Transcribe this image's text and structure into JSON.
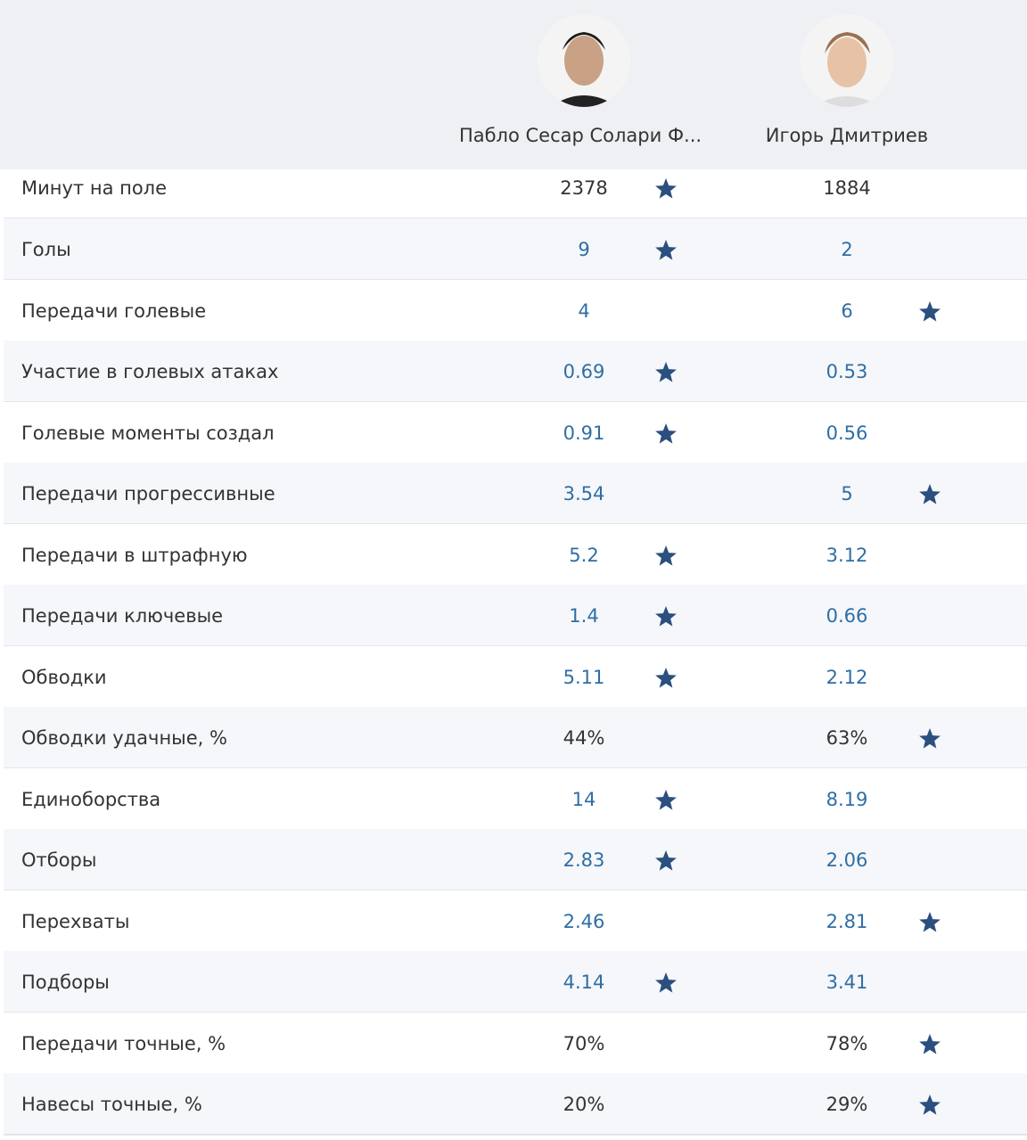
{
  "players": [
    {
      "name": "Пабло Сесар Солари Ф..."
    },
    {
      "name": "Игорь Дмитриев"
    }
  ],
  "rows": [
    {
      "label": "Минут на поле",
      "values": [
        "2378",
        "1884"
      ],
      "stars": [
        true,
        false
      ],
      "linked": false
    },
    {
      "label": "Голы",
      "values": [
        "9",
        "2"
      ],
      "stars": [
        true,
        false
      ],
      "linked": true
    },
    {
      "label": "Передачи голевые",
      "values": [
        "4",
        "6"
      ],
      "stars": [
        false,
        true
      ],
      "linked": true
    },
    {
      "label": "Участие в голевых атаках",
      "values": [
        "0.69",
        "0.53"
      ],
      "stars": [
        true,
        false
      ],
      "linked": true
    },
    {
      "label": "Голевые моменты создал",
      "values": [
        "0.91",
        "0.56"
      ],
      "stars": [
        true,
        false
      ],
      "linked": true
    },
    {
      "label": "Передачи прогрессивные",
      "values": [
        "3.54",
        "5"
      ],
      "stars": [
        false,
        true
      ],
      "linked": true
    },
    {
      "label": "Передачи в штрафную",
      "values": [
        "5.2",
        "3.12"
      ],
      "stars": [
        true,
        false
      ],
      "linked": true
    },
    {
      "label": "Передачи ключевые",
      "values": [
        "1.4",
        "0.66"
      ],
      "stars": [
        true,
        false
      ],
      "linked": true
    },
    {
      "label": "Обводки",
      "values": [
        "5.11",
        "2.12"
      ],
      "stars": [
        true,
        false
      ],
      "linked": true
    },
    {
      "label": "Обводки удачные, %",
      "values": [
        "44%",
        "63%"
      ],
      "stars": [
        false,
        true
      ],
      "linked": false
    },
    {
      "label": "Единоборства",
      "values": [
        "14",
        "8.19"
      ],
      "stars": [
        true,
        false
      ],
      "linked": true
    },
    {
      "label": "Отборы",
      "values": [
        "2.83",
        "2.06"
      ],
      "stars": [
        true,
        false
      ],
      "linked": true
    },
    {
      "label": "Перехваты",
      "values": [
        "2.46",
        "2.81"
      ],
      "stars": [
        false,
        true
      ],
      "linked": true
    },
    {
      "label": "Подборы",
      "values": [
        "4.14",
        "3.41"
      ],
      "stars": [
        true,
        false
      ],
      "linked": true
    },
    {
      "label": "Передачи точные, %",
      "values": [
        "70%",
        "78%"
      ],
      "stars": [
        false,
        true
      ],
      "linked": false
    },
    {
      "label": "Навесы точные, %",
      "values": [
        "20%",
        "29%"
      ],
      "stars": [
        false,
        true
      ],
      "linked": false
    }
  ]
}
